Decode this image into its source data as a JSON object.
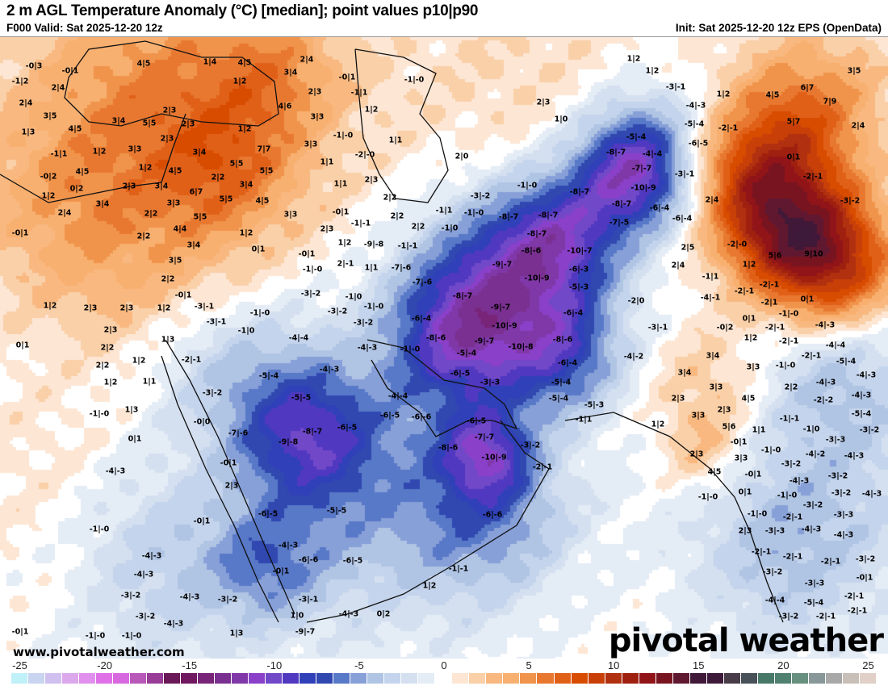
{
  "header": {
    "title": "2 m AGL Temperature Anomaly (°C) [median]; point values p10|p90",
    "valid": "F000 Valid: Sat 2025-12-20 12z",
    "init": "Init: Sat 2025-12-20 12z EPS (OpenData)"
  },
  "footer": {
    "website": "www.pivotalweather.com",
    "logo": "pivotal weather"
  },
  "colorbar": {
    "units": "°C",
    "ticks": [
      "-25",
      "-20",
      "-15",
      "-10",
      "-5",
      "0",
      "5",
      "10",
      "15",
      "20",
      "25"
    ],
    "tick_values": [
      -25,
      -20,
      -15,
      -10,
      -5,
      0,
      5,
      10,
      15,
      20,
      25
    ],
    "min": -25,
    "max": 25,
    "colors": [
      "#c0f0f8",
      "#c8d4f0",
      "#d0c0f0",
      "#dca8ec",
      "#e090ec",
      "#e070e8",
      "#d868e0",
      "#b858b8",
      "#983c98",
      "#6a1858",
      "#701860",
      "#782478",
      "#7a3090",
      "#8038a8",
      "#8a40c8",
      "#7048c8",
      "#5038c0",
      "#3040b8",
      "#3048b0",
      "#5878c8",
      "#88a0d8",
      "#b0c4e4",
      "#c4d4ec",
      "#d4e0f0",
      "#e4ecf6",
      "#ffffff",
      "#fde6d4",
      "#fad0a8",
      "#f8b880",
      "#f8b070",
      "#f0944c",
      "#e87830",
      "#e06018",
      "#d84c00",
      "#c84008",
      "#b03010",
      "#a02010",
      "#901418",
      "#781420",
      "#601830",
      "#401838",
      "#3e1a3a",
      "#483c48",
      "#485058",
      "#487868",
      "#508070",
      "#689080",
      "#889898",
      "#a8a8a8",
      "#c8c0b8",
      "#e0d0c8"
    ]
  },
  "map": {
    "point_values": [
      "-0|3",
      "-0|1",
      "-1|2",
      "2|4",
      "2|4",
      "3|5",
      "4|5",
      "1|4",
      "4|5",
      "3|4",
      "1|2",
      "4|6",
      "2|3",
      "3|4",
      "5|5",
      "2|3",
      "1|2",
      "4|5",
      "1|3",
      "2|3",
      "-1|1",
      "1|2",
      "3|3",
      "3|4",
      "7|7",
      "5|5",
      "1|2",
      "4|5",
      "5|5",
      "4|5",
      "-0|2",
      "2|2",
      "3|4",
      "0|2",
      "2|3",
      "3|4",
      "6|7",
      "1|2",
      "5|5",
      "4|5",
      "3|4",
      "3|3",
      "2|2",
      "2|4",
      "3|3",
      "5|5",
      "4|4",
      "1|2",
      "-0|1",
      "2|2",
      "2|4",
      "-0|1",
      "-1|-0",
      "2|3",
      "-1|1",
      "1|2",
      "3|3",
      "2|3",
      "1|0",
      "-1|-0",
      "1|1",
      "3|3",
      "-2|-0",
      "2|0",
      "1|1",
      "1|1",
      "2|3",
      "2|2",
      "-1|-0",
      "-8|-7",
      "-3|-2",
      "-1|1",
      "-1|-0",
      "-0|1",
      "-8|-7",
      "-8|-7",
      "2|2",
      "-1|-1",
      "2|3",
      "2|2",
      "-1|0",
      "-8|-7",
      "1|2",
      "1|2",
      "3|5",
      "-3|-1",
      "1|2",
      "4|5",
      "6|7",
      "-4|-3",
      "7|9",
      "-5|-4",
      "5|7",
      "-2|-1",
      "2|4",
      "-5|-4",
      "-6|-5",
      "-8|-7",
      "-4|-4",
      "0|1",
      "-7|-7",
      "-3|-1",
      "-2|-1",
      "-10|-9",
      "2|4",
      "-3|-2",
      "-8|-7",
      "-6|-4",
      "-6|-4",
      "-7|-5",
      "3|4",
      "0|1",
      "3|5",
      "2|2",
      "-0|1",
      "1|2",
      "2|3",
      "2|3",
      "1|2",
      "-3|-1",
      "-1|-0",
      "-3|-1",
      "2|3",
      "-1|0",
      "0|1",
      "1|3",
      "2|2",
      "-2|-1",
      "1|2",
      "2|2",
      "-5|-4",
      "1|1",
      "1|2",
      "-3|-2",
      "1|3",
      "-1|-0",
      "-0|0",
      "-7|-6",
      "0|1",
      "-9|-8",
      "1|2",
      "-9|-8",
      "-1|-1",
      "-8|-6",
      "-10|-7",
      "-0|1",
      "2|-1",
      "1|1",
      "-7|-6",
      "-9|-7",
      "-6|-3",
      "-1|-0",
      "-10|-9",
      "-7|-6",
      "-5|-3",
      "-3|-2",
      "-1|0",
      "-8|-7",
      "-1|-0",
      "-9|-7",
      "-3|-2",
      "-6|-4",
      "-3|-2",
      "-6|-4",
      "-10|-9",
      "-4|-4",
      "-8|-6",
      "-9|-7",
      "-8|-6",
      "-4|-3",
      "-1|-0",
      "-10|-8",
      "-5|-4",
      "-6|-4",
      "-4|-3",
      "-6|-5",
      "-3|-3",
      "-5|-4",
      "-5|-5",
      "-4|-4",
      "-5|-4",
      "-5|-3",
      "-6|-5",
      "-6|-6",
      "-6|-5",
      "-1|1",
      "-8|-7",
      "-6|-5",
      "-7|-7",
      "-8|-6",
      "-3|-2",
      "-2|-0",
      "2|5",
      "5|6",
      "9|10",
      "2|4",
      "1|2",
      "-1|1",
      "-2|-1",
      "-4|-1",
      "-2|-1",
      "-2|0",
      "-2|1",
      "0|1",
      "-1|-0",
      "0|1",
      "-3|-1",
      "-0|2",
      "-2|-1",
      "-4|-3",
      "1|2",
      "-2|-1",
      "-4|-4",
      "-4|-2",
      "3|4",
      "-2|-1",
      "-5|-4",
      "3|3",
      "-1|-0",
      "3|4",
      "-4|-3",
      "-4|-3",
      "3|3",
      "2|2",
      "2|3",
      "4|5",
      "-2|-2",
      "-4|-3",
      "2|3",
      "3|3",
      "-5|-4",
      "-1|-1",
      "1|2",
      "5|6",
      "1|1",
      "-1|0",
      "-3|-2",
      "-0|1",
      "-3|-3",
      "-4|-3",
      "-0|1",
      "2|3",
      "-1|-0",
      "-0|1",
      "-6|-5",
      "-4|-3",
      "-4|-3",
      "-4|-3",
      "-0|1",
      "-3|-2",
      "-4|-3",
      "-3|-2",
      "-3|-2",
      "-4|-3",
      "1|3",
      "-0|1",
      "-1|-0",
      "-1|-0",
      "-10|-9",
      "-2|-1",
      "-5|-5",
      "-6|-6",
      "-6|-6",
      "-6|-5",
      "-1|-1",
      "1|2",
      "-3|-1",
      "-4|-3",
      "0|2",
      "1|0",
      "-9|-7",
      "-1|-0",
      "-4|-2",
      "-4|-3",
      "2|3",
      "3|3",
      "-3|-2",
      "4|5",
      "-0|1",
      "-4|-3",
      "-3|-2",
      "-1|-0",
      "0|1",
      "-1|-0",
      "-3|-2",
      "-4|-3",
      "-3|-2",
      "-1|-0",
      "-2|-1",
      "-3|-3",
      "2|3",
      "-3|-3",
      "-4|-3",
      "-4|-3",
      "-2|-1",
      "-2|-1",
      "-2|-1",
      "-3|-2",
      "-3|-2",
      "-3|-3",
      "-0|1",
      "-2|-1",
      "-4|-4",
      "-5|-4",
      "-2|-1",
      "-3|-2",
      "-2|-1"
    ]
  }
}
